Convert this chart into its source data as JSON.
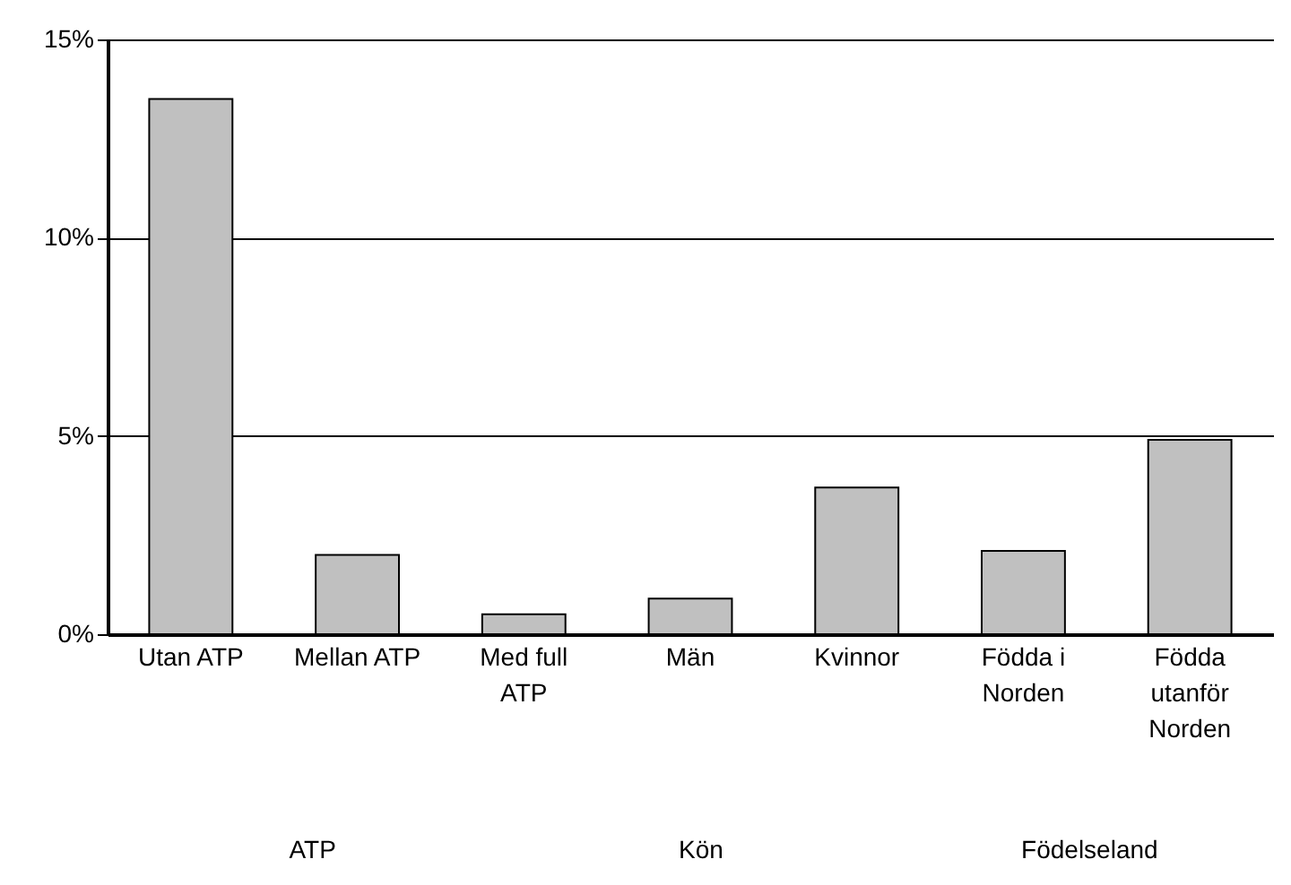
{
  "chart_data": {
    "type": "bar",
    "categories": [
      "Utan ATP",
      "Mellan ATP",
      "Med full\nATP",
      "Män",
      "Kvinnor",
      "Födda i\nNorden",
      "Födda\nutanför\nNorden"
    ],
    "values": [
      13.5,
      2.0,
      0.5,
      0.9,
      3.7,
      2.1,
      4.9
    ],
    "color": "#c0c0c0",
    "ylim": [
      0,
      15
    ],
    "yticks": [
      {
        "value": 0,
        "label": "0%"
      },
      {
        "value": 5,
        "label": "5%"
      },
      {
        "value": 10,
        "label": "10%"
      },
      {
        "value": 15,
        "label": "15%"
      }
    ],
    "grid": "y",
    "annotations": [
      "ATP",
      "Kön",
      "Födelseland"
    ]
  }
}
